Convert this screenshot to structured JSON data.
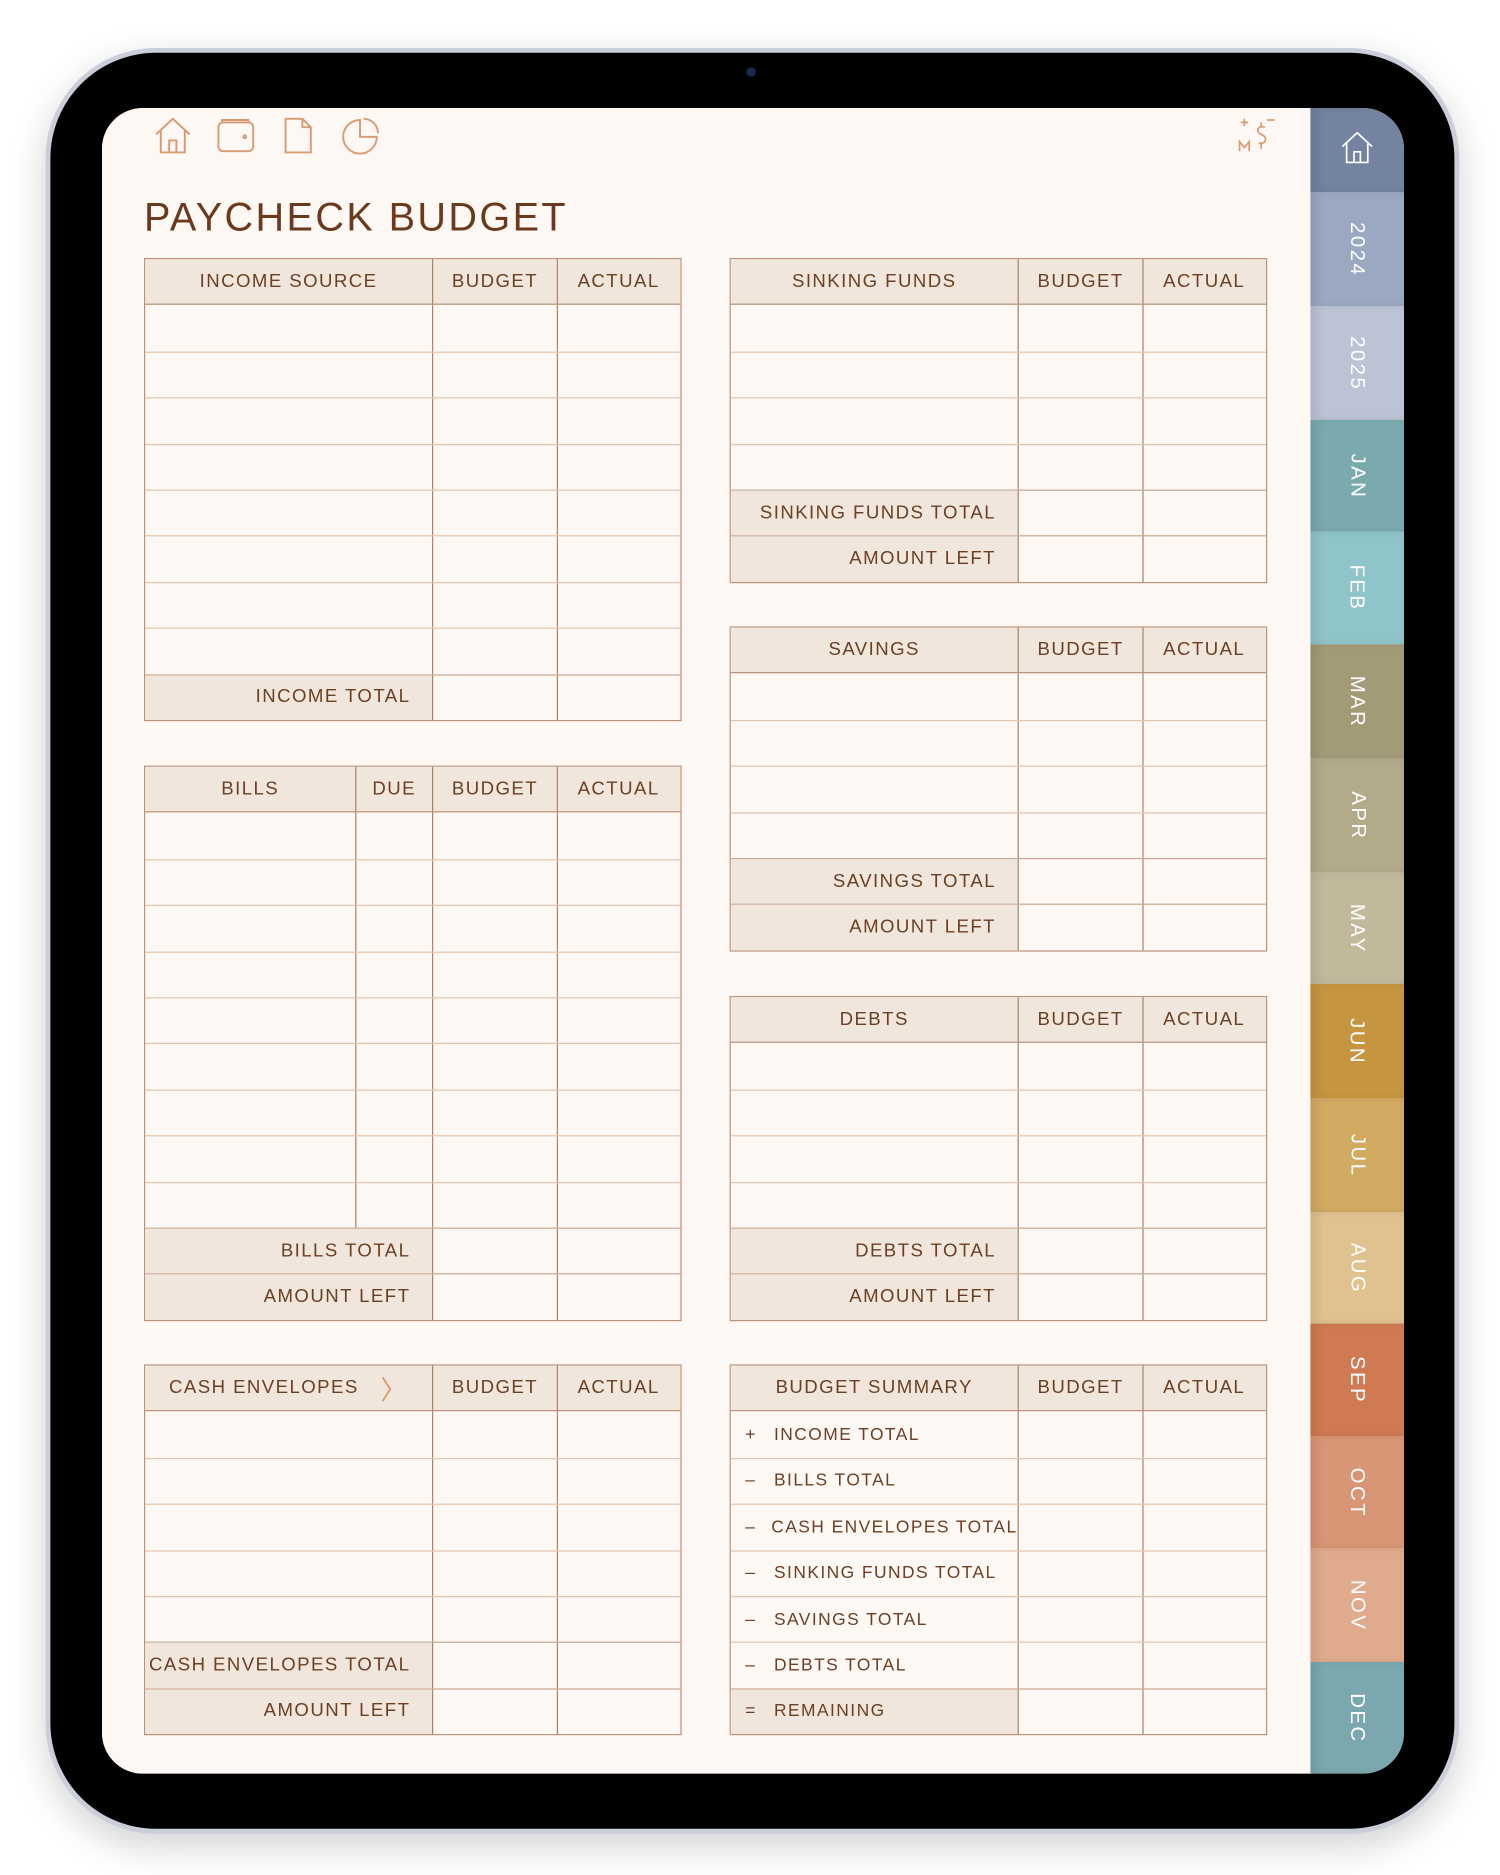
{
  "header": {
    "title": "PAYCHECK BUDGET",
    "icons": [
      "home-icon",
      "wallet-icon",
      "document-icon",
      "pie-chart-icon"
    ],
    "logo": "MS"
  },
  "colors": {
    "accent": "#d99a72",
    "text": "#6b3a1e",
    "header_bg": "#f0e6dc",
    "page_bg": "#fdf8f4"
  },
  "tables": {
    "income": {
      "headers": [
        "INCOME SOURCE",
        "BUDGET",
        "ACTUAL"
      ],
      "rows": 8,
      "footers": [
        "INCOME TOTAL"
      ]
    },
    "bills": {
      "headers": [
        "BILLS",
        "DUE",
        "BUDGET",
        "ACTUAL"
      ],
      "rows": 9,
      "footers": [
        "BILLS TOTAL",
        "AMOUNT LEFT"
      ]
    },
    "cash": {
      "headers": [
        "CASH ENVELOPES",
        "BUDGET",
        "ACTUAL"
      ],
      "rows": 5,
      "footers": [
        "CASH ENVELOPES TOTAL",
        "AMOUNT LEFT"
      ]
    },
    "sinking": {
      "headers": [
        "SINKING FUNDS",
        "BUDGET",
        "ACTUAL"
      ],
      "rows": 4,
      "footers": [
        "SINKING FUNDS TOTAL",
        "AMOUNT LEFT"
      ]
    },
    "savings": {
      "headers": [
        "SAVINGS",
        "BUDGET",
        "ACTUAL"
      ],
      "rows": 4,
      "footers": [
        "SAVINGS TOTAL",
        "AMOUNT LEFT"
      ]
    },
    "debts": {
      "headers": [
        "DEBTS",
        "BUDGET",
        "ACTUAL"
      ],
      "rows": 4,
      "footers": [
        "DEBTS TOTAL",
        "AMOUNT LEFT"
      ]
    },
    "summary": {
      "headers": [
        "BUDGET SUMMARY",
        "BUDGET",
        "ACTUAL"
      ],
      "items": [
        {
          "sign": "+",
          "label": "INCOME TOTAL"
        },
        {
          "sign": "–",
          "label": "BILLS TOTAL"
        },
        {
          "sign": "–",
          "label": "CASH ENVELOPES TOTAL"
        },
        {
          "sign": "–",
          "label": "SINKING FUNDS TOTAL"
        },
        {
          "sign": "–",
          "label": "SAVINGS TOTAL"
        },
        {
          "sign": "–",
          "label": "DEBTS TOTAL"
        },
        {
          "sign": "=",
          "label": "REMAINING"
        }
      ]
    }
  },
  "tabs": [
    {
      "label": "",
      "icon": "home-icon",
      "color": "#7383a0"
    },
    {
      "label": "2024",
      "color": "#9aa8c2"
    },
    {
      "label": "2025",
      "color": "#bcc3d4"
    },
    {
      "label": "JAN",
      "color": "#7aaaae"
    },
    {
      "label": "FEB",
      "color": "#8fc4c8"
    },
    {
      "label": "MAR",
      "color": "#a39a78"
    },
    {
      "label": "APR",
      "color": "#b3aa8a"
    },
    {
      "label": "MAY",
      "color": "#c2b99c"
    },
    {
      "label": "JUN",
      "color": "#c6953f"
    },
    {
      "label": "JUL",
      "color": "#d3aa62"
    },
    {
      "label": "AUG",
      "color": "#e0c290"
    },
    {
      "label": "SEP",
      "color": "#cf7a52"
    },
    {
      "label": "OCT",
      "color": "#d99676"
    },
    {
      "label": "NOV",
      "color": "#e0ab8c"
    },
    {
      "label": "DEC",
      "color": "#7aa8ae"
    }
  ]
}
